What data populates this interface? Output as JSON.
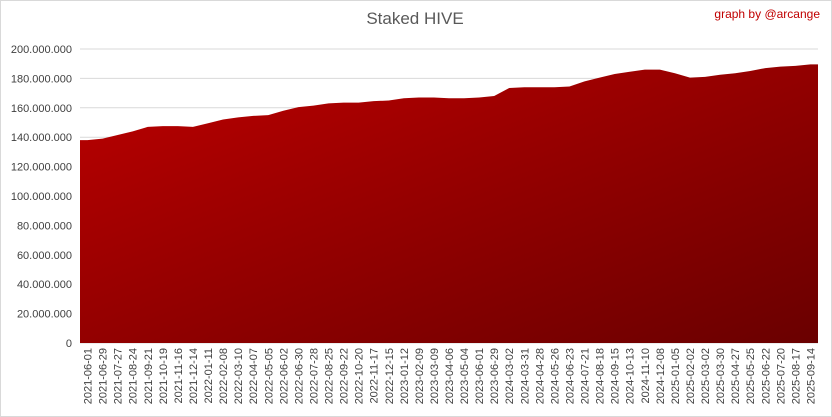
{
  "chart_data": {
    "type": "area",
    "title": "Staked HIVE",
    "annotation": "graph by @arcange",
    "categories": [
      "2021-06-01",
      "2021-06-29",
      "2021-07-27",
      "2021-08-24",
      "2021-09-21",
      "2021-10-19",
      "2021-11-16",
      "2021-12-14",
      "2022-01-11",
      "2022-02-08",
      "2022-03-10",
      "2022-04-07",
      "2022-05-05",
      "2022-06-02",
      "2022-06-30",
      "2022-07-28",
      "2022-08-25",
      "2022-09-22",
      "2022-10-20",
      "2022-11-17",
      "2022-12-15",
      "2023-01-12",
      "2023-02-09",
      "2023-03-09",
      "2023-04-06",
      "2023-05-04",
      "2023-06-01",
      "2023-06-29",
      "2024-03-02",
      "2024-03-31",
      "2024-04-28",
      "2024-05-26",
      "2024-06-23",
      "2024-07-21",
      "2024-08-18",
      "2024-09-15",
      "2024-10-13",
      "2024-11-10",
      "2024-12-08",
      "2025-01-05",
      "2025-02-02",
      "2025-03-02",
      "2025-03-30",
      "2025-04-27",
      "2025-05-25",
      "2025-06-22",
      "2025-07-20",
      "2025-08-17",
      "2025-09-14"
    ],
    "values": [
      138000000,
      139000000,
      141500000,
      144000000,
      147000000,
      147500000,
      147500000,
      147000000,
      149500000,
      152000000,
      153500000,
      154500000,
      155000000,
      158000000,
      160500000,
      161500000,
      163000000,
      163500000,
      163500000,
      164500000,
      165000000,
      166500000,
      167000000,
      167000000,
      166500000,
      166500000,
      167000000,
      168000000,
      173500000,
      174000000,
      174000000,
      174000000,
      174500000,
      178000000,
      180500000,
      183000000,
      184500000,
      186000000,
      186000000,
      183500000,
      180500000,
      181000000,
      182500000,
      183500000,
      185000000,
      187000000,
      188000000,
      188500000,
      189500000
    ],
    "gradient": [
      "#bc0000",
      "#6a0000"
    ],
    "ylim": [
      0,
      200000000
    ],
    "yticks": [
      0,
      {
        "value": 20000000,
        "label": "20.000.000"
      },
      {
        "value": 40000000,
        "label": "40.000.000"
      },
      {
        "value": 60000000,
        "label": "60.000.000"
      },
      {
        "value": 80000000,
        "label": "80.000.000"
      },
      {
        "value": 100000000,
        "label": "100.000.000"
      },
      {
        "value": 120000000,
        "label": "120.000.000"
      },
      {
        "value": 140000000,
        "label": "140.000.000"
      },
      {
        "value": 160000000,
        "label": "160.000.000"
      },
      {
        "value": 180000000,
        "label": "180.000.000"
      },
      {
        "value": 200000000,
        "label": "200.000.000"
      }
    ],
    "grid": true
  }
}
